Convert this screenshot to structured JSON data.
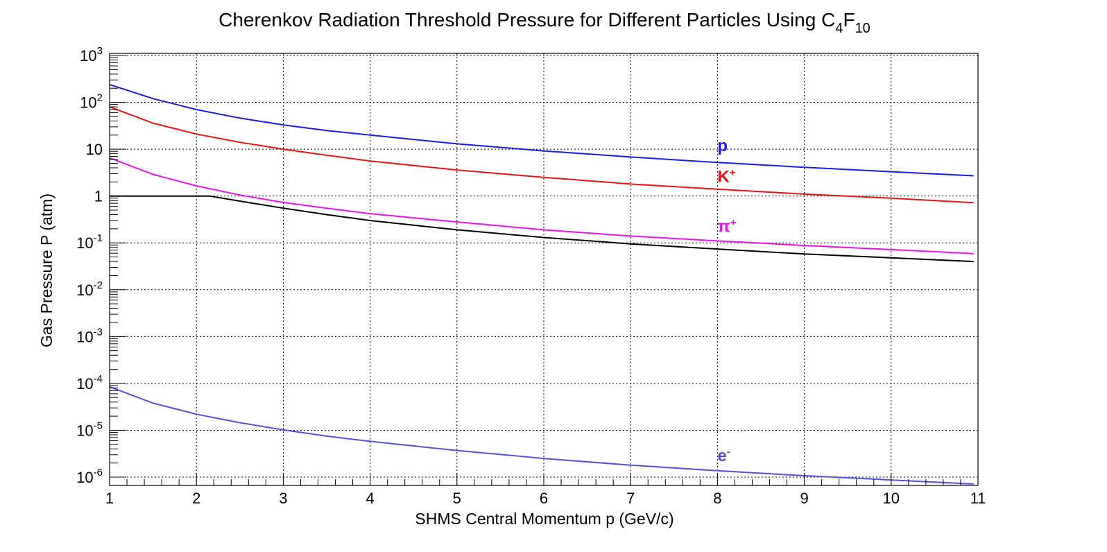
{
  "chart_data": {
    "type": "line",
    "title": {
      "main": "Cherenkov Radiation Threshold Pressure for Different Particles Using C",
      "sub1": "4",
      "mid": "F",
      "sub2": "10"
    },
    "xlabel": "SHMS Central Momentum p (GeV/c)",
    "ylabel": "Gas Pressure P (atm)",
    "xlim": [
      1,
      11
    ],
    "ylim": [
      5e-07,
      1000
    ],
    "yscale": "log",
    "grid": true,
    "x_ticks": [
      "1",
      "2",
      "3",
      "4",
      "5",
      "6",
      "7",
      "8",
      "9",
      "10",
      "11"
    ],
    "y_ticks": [
      {
        "value": 1000,
        "base": "10",
        "exp": "3"
      },
      {
        "value": 100,
        "base": "10",
        "exp": "2"
      },
      {
        "value": 10,
        "base": "10",
        "exp": ""
      },
      {
        "value": 1,
        "base": "1",
        "exp": ""
      },
      {
        "value": 0.1,
        "base": "10",
        "exp": "-1"
      },
      {
        "value": 0.01,
        "base": "10",
        "exp": "-2"
      },
      {
        "value": 0.001,
        "base": "10",
        "exp": "-3"
      },
      {
        "value": 0.0001,
        "base": "10",
        "exp": "-4"
      },
      {
        "value": 1e-05,
        "base": "10",
        "exp": "-5"
      },
      {
        "value": 1e-06,
        "base": "10",
        "exp": "-6"
      }
    ],
    "series": [
      {
        "name": "p",
        "sup": "",
        "color": "#1a1aee",
        "label_at": [
          8,
          9.0
        ],
        "x": [
          1,
          1.5,
          2,
          2.5,
          3,
          3.5,
          4,
          5,
          6,
          7,
          8,
          9,
          10,
          10.95
        ],
        "y": [
          240,
          120,
          70,
          46,
          33,
          25,
          20,
          13,
          9.2,
          6.8,
          5.2,
          4.1,
          3.3,
          2.7
        ]
      },
      {
        "name": "K",
        "sup": "+",
        "color": "#ee1111",
        "label_at": [
          8,
          2.0
        ],
        "x": [
          1,
          1.5,
          2,
          2.5,
          3,
          3.5,
          4,
          5,
          6,
          7,
          8,
          9,
          10,
          10.95
        ],
        "y": [
          80,
          36,
          21,
          14,
          10,
          7.4,
          5.6,
          3.6,
          2.5,
          1.8,
          1.4,
          1.1,
          0.9,
          0.72
        ]
      },
      {
        "name": "π",
        "sup": "+",
        "color": "#ee11ee",
        "label_at": [
          8,
          0.17
        ],
        "x": [
          1,
          1.5,
          2,
          2.5,
          3,
          3.5,
          4,
          5,
          6,
          7,
          8,
          9,
          10,
          10.95
        ],
        "y": [
          6.5,
          2.9,
          1.65,
          1.05,
          0.73,
          0.55,
          0.42,
          0.28,
          0.19,
          0.14,
          0.11,
          0.088,
          0.072,
          0.059
        ]
      },
      {
        "name": "",
        "sup": "",
        "color": "#000000",
        "label_at": null,
        "x": [
          1,
          2,
          2.15,
          2.5,
          3,
          3.5,
          4,
          5,
          6,
          7,
          8,
          9,
          10,
          10.95
        ],
        "y": [
          1.0,
          1.0,
          1.0,
          0.78,
          0.55,
          0.4,
          0.3,
          0.19,
          0.13,
          0.095,
          0.074,
          0.058,
          0.048,
          0.04
        ]
      },
      {
        "name": "e",
        "sup": "-",
        "color": "#5151dd",
        "label_at": [
          8,
          2.2e-06
        ],
        "x": [
          1,
          1.5,
          2,
          2.5,
          3,
          3.5,
          4,
          5,
          6,
          7,
          8,
          9,
          10,
          10.95
        ],
        "y": [
          8.5e-05,
          3.8e-05,
          2.2e-05,
          1.45e-05,
          1.02e-05,
          7.5e-06,
          5.8e-06,
          3.7e-06,
          2.5e-06,
          1.8e-06,
          1.37e-06,
          1.07e-06,
          8.7e-07,
          7.1e-07
        ]
      }
    ]
  }
}
